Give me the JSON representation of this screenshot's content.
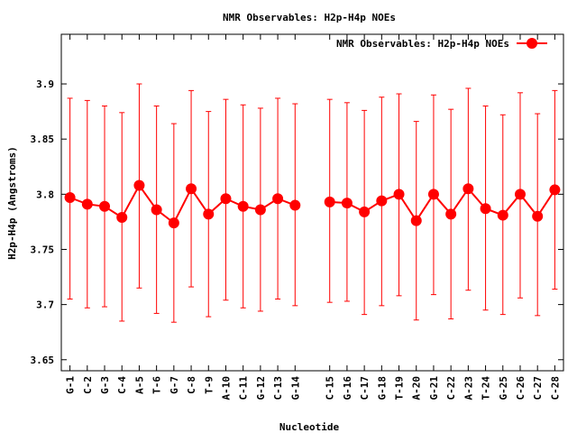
{
  "chart_data": {
    "type": "line",
    "title": "NMR Observables: H2p-H4p NOEs",
    "xlabel": "Nucleotide",
    "ylabel": "H2p-H4p (Angstroms)",
    "ylim": [
      3.64,
      3.945
    ],
    "yticks": [
      3.65,
      3.7,
      3.75,
      3.8,
      3.85,
      3.9
    ],
    "ytick_labels": [
      "3.65",
      "3.7",
      "3.75",
      "3.8",
      "3.85",
      "3.9"
    ],
    "legend_position": "top-right",
    "grid": false,
    "series": [
      {
        "name": "NMR Observables: H2p-H4p NOEs",
        "color": "#ff0000",
        "marker": "circle",
        "categories": [
          "G-1",
          "C-2",
          "G-3",
          "C-4",
          "A-5",
          "T-6",
          "G-7",
          "C-8",
          "T-9",
          "A-10",
          "C-11",
          "G-12",
          "C-13",
          "G-14",
          "C-15",
          "G-16",
          "C-17",
          "G-18",
          "T-19",
          "A-20",
          "G-21",
          "C-22",
          "A-23",
          "T-24",
          "G-25",
          "C-26",
          "C-27",
          "C-28"
        ],
        "x": [
          1,
          2,
          3,
          4,
          5,
          6,
          7,
          8,
          9,
          10,
          11,
          12,
          13,
          14,
          16,
          17,
          18,
          19,
          20,
          21,
          22,
          23,
          24,
          25,
          26,
          27,
          28,
          29
        ],
        "values": [
          3.797,
          3.791,
          3.789,
          3.779,
          3.808,
          3.786,
          3.774,
          3.805,
          3.782,
          3.796,
          3.789,
          3.786,
          3.796,
          3.79,
          3.793,
          3.792,
          3.784,
          3.794,
          3.8,
          3.776,
          3.8,
          3.782,
          3.805,
          3.787,
          3.781,
          3.8,
          3.78,
          3.804
        ],
        "err_low": [
          3.705,
          3.697,
          3.698,
          3.685,
          3.715,
          3.692,
          3.684,
          3.716,
          3.689,
          3.704,
          3.697,
          3.694,
          3.705,
          3.699,
          3.702,
          3.703,
          3.691,
          3.699,
          3.708,
          3.686,
          3.709,
          3.687,
          3.713,
          3.695,
          3.691,
          3.706,
          3.69,
          3.714
        ],
        "err_high": [
          3.887,
          3.885,
          3.88,
          3.874,
          3.9,
          3.88,
          3.864,
          3.894,
          3.875,
          3.886,
          3.881,
          3.878,
          3.887,
          3.882,
          3.886,
          3.883,
          3.876,
          3.888,
          3.891,
          3.866,
          3.89,
          3.877,
          3.896,
          3.88,
          3.872,
          3.892,
          3.873,
          3.894
        ]
      }
    ]
  }
}
